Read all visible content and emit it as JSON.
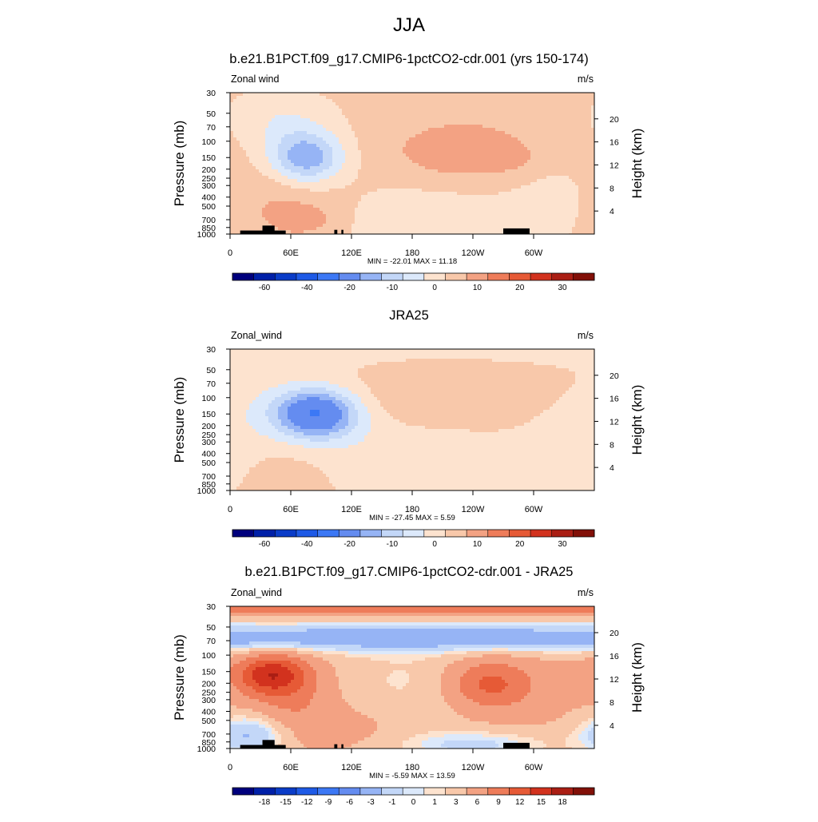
{
  "figure": {
    "title": "JJA"
  },
  "chart_data": [
    {
      "type": "heatmap",
      "title": "b.e21.B1PCT.f09_g17.CMIP6-1pctCO2-cdr.001 (yrs 150-174)",
      "left_label": "Zonal wind",
      "right_label": "m/s",
      "ylabel": "Pressure (mb)",
      "ylabel_right": "Height (km)",
      "pressure_levels": [
        30,
        50,
        70,
        100,
        150,
        200,
        250,
        300,
        400,
        500,
        700,
        850,
        1000
      ],
      "pressure_tick_labels": [
        "30",
        "50",
        "70",
        "100",
        "150",
        "200",
        "250",
        "300",
        "400",
        "500",
        "700",
        "850",
        "1000"
      ],
      "height_ticks_km": [
        4,
        8,
        12,
        16,
        20
      ],
      "height_tick_labels": [
        "4",
        "8",
        "12",
        "16",
        "20"
      ],
      "x_ticks_deg": [
        0,
        60,
        120,
        180,
        240,
        300
      ],
      "x_tick_labels": [
        "0",
        "60E",
        "120E",
        "180",
        "120W",
        "60W"
      ],
      "xlim": [
        0,
        360
      ],
      "ylim_mb": [
        1000,
        30
      ],
      "stats_label": "MIN = -22.01  MAX =  11.18",
      "min": -22.01,
      "max": 11.18,
      "levels": [
        -70,
        -60,
        -50,
        -40,
        -30,
        -20,
        -15,
        -10,
        -5,
        0,
        5,
        10,
        15,
        20,
        25,
        30,
        35
      ],
      "colorbar_labels": [
        "-60",
        "-40",
        "-20",
        "-10",
        "0",
        "10",
        "20",
        "30"
      ],
      "colorbar_label_boxes": [
        1,
        3,
        5,
        7,
        9,
        11,
        13,
        15
      ],
      "colors": [
        "#00007d",
        "#0020a8",
        "#0a3cc8",
        "#1e5ae6",
        "#3c78f5",
        "#648cf0",
        "#96b4f5",
        "#c3d7f8",
        "#dce9fb",
        "#fde3cf",
        "#f8c8aa",
        "#f3a283",
        "#ee7c5a",
        "#e65a36",
        "#d2321e",
        "#aa1e14",
        "#821008"
      ],
      "background": 0.6,
      "features": [
        {
          "lon": 75,
          "p": 150,
          "amp": -21.5,
          "slon": 26,
          "slogp": 0.2
        },
        {
          "lon": 50,
          "p": 60,
          "amp": -5,
          "slon": 30,
          "slogp": 0.18
        },
        {
          "lon": 230,
          "p": 140,
          "amp": 8,
          "slon": 60,
          "slogp": 0.3
        },
        {
          "lon": 272,
          "p": 150,
          "amp": 3.5,
          "slon": 18,
          "slogp": 0.09
        },
        {
          "lon": 55,
          "p": 450,
          "amp": 5.5,
          "slon": 45,
          "slogp": 0.35
        },
        {
          "lon": 75,
          "p": 700,
          "amp": 4,
          "slon": 20,
          "slogp": 0.1
        },
        {
          "lon": 200,
          "p": 650,
          "amp": -5,
          "slon": 65,
          "slogp": 0.35
        },
        {
          "lon": 320,
          "p": 350,
          "amp": -3,
          "slon": 35,
          "slogp": 0.3
        }
      ]
    },
    {
      "type": "heatmap",
      "title": "JRA25",
      "left_label": "Zonal_wind",
      "right_label": "m/s",
      "ylabel": "Pressure (mb)",
      "ylabel_right": "Height (km)",
      "pressure_levels": [
        30,
        50,
        70,
        100,
        150,
        200,
        250,
        300,
        400,
        500,
        700,
        850,
        1000
      ],
      "pressure_tick_labels": [
        "30",
        "50",
        "70",
        "100",
        "150",
        "200",
        "250",
        "300",
        "400",
        "500",
        "700",
        "850",
        "1000"
      ],
      "height_ticks_km": [
        4,
        8,
        12,
        16,
        20
      ],
      "height_tick_labels": [
        "4",
        "8",
        "12",
        "16",
        "20"
      ],
      "x_ticks_deg": [
        0,
        60,
        120,
        180,
        240,
        300
      ],
      "x_tick_labels": [
        "0",
        "60E",
        "120E",
        "180",
        "120W",
        "60W"
      ],
      "xlim": [
        0,
        360
      ],
      "ylim_mb": [
        1000,
        30
      ],
      "stats_label": "MIN = -27.45  MAX =   5.59",
      "min": -27.45,
      "max": 5.59,
      "levels": [
        -70,
        -60,
        -50,
        -40,
        -30,
        -20,
        -15,
        -10,
        -5,
        0,
        5,
        10,
        15,
        20,
        25,
        30,
        35
      ],
      "colorbar_labels": [
        "-60",
        "-40",
        "-20",
        "-10",
        "0",
        "10",
        "20",
        "30"
      ],
      "colorbar_label_boxes": [
        1,
        3,
        5,
        7,
        9,
        11,
        13,
        15
      ],
      "colors": [
        "#00007d",
        "#0020a8",
        "#0a3cc8",
        "#1e5ae6",
        "#3c78f5",
        "#648cf0",
        "#96b4f5",
        "#c3d7f8",
        "#dce9fb",
        "#fde3cf",
        "#f8c8aa",
        "#f3a283",
        "#ee7c5a",
        "#e65a36",
        "#d2321e",
        "#aa1e14",
        "#821008"
      ],
      "background": 0.8,
      "features": [
        {
          "lon": 85,
          "p": 150,
          "amp": -27,
          "slon": 28,
          "slogp": 0.18
        },
        {
          "lon": 60,
          "p": 160,
          "amp": -6,
          "slon": 60,
          "slogp": 0.35
        },
        {
          "lon": 0,
          "p": 30,
          "amp": -3,
          "slon": 400,
          "slogp": 0.12
        },
        {
          "lon": 210,
          "p": 100,
          "amp": 4.5,
          "slon": 75,
          "slogp": 0.25
        },
        {
          "lon": 270,
          "p": 150,
          "amp": 1.5,
          "slon": 15,
          "slogp": 0.08
        },
        {
          "lon": 200,
          "p": 500,
          "amp": -5,
          "slon": 70,
          "slogp": 0.3
        },
        {
          "lon": 330,
          "p": 400,
          "amp": -4,
          "slon": 30,
          "slogp": 0.3
        },
        {
          "lon": 60,
          "p": 500,
          "amp": 3,
          "slon": 35,
          "slogp": 0.3
        }
      ]
    },
    {
      "type": "heatmap",
      "title": "b.e21.B1PCT.f09_g17.CMIP6-1pctCO2-cdr.001 - JRA25",
      "left_label": "Zonal_wind",
      "right_label": "m/s",
      "ylabel": "Pressure (mb)",
      "ylabel_right": "Height (km)",
      "pressure_levels": [
        30,
        50,
        70,
        100,
        150,
        200,
        250,
        300,
        400,
        500,
        700,
        850,
        1000
      ],
      "pressure_tick_labels": [
        "30",
        "50",
        "70",
        "100",
        "150",
        "200",
        "250",
        "300",
        "400",
        "500",
        "700",
        "850",
        "1000"
      ],
      "height_ticks_km": [
        4,
        8,
        12,
        16,
        20
      ],
      "height_tick_labels": [
        "4",
        "8",
        "12",
        "16",
        "20"
      ],
      "x_ticks_deg": [
        0,
        60,
        120,
        180,
        240,
        300
      ],
      "x_tick_labels": [
        "0",
        "60E",
        "120E",
        "180",
        "120W",
        "60W"
      ],
      "xlim": [
        0,
        360
      ],
      "ylim_mb": [
        1000,
        30
      ],
      "stats_label": "MIN =  -5.59  MAX =  13.59",
      "min": -5.59,
      "max": 13.59,
      "levels": [
        -21,
        -18,
        -15,
        -12,
        -9,
        -6,
        -3,
        -1,
        0,
        1,
        3,
        6,
        9,
        12,
        15,
        18,
        21
      ],
      "colorbar_labels": [
        "-18",
        "-15",
        "-12",
        "-9",
        "-6",
        "-3",
        "-1",
        "0",
        "1",
        "3",
        "6",
        "9",
        "12",
        "15",
        "18"
      ],
      "colorbar_label_boxes": [
        1,
        2,
        3,
        4,
        5,
        6,
        7,
        8,
        9,
        10,
        11,
        12,
        13,
        14,
        15
      ],
      "colors": [
        "#00007d",
        "#0020a8",
        "#0a3cc8",
        "#1e5ae6",
        "#3c78f5",
        "#648cf0",
        "#96b4f5",
        "#c3d7f8",
        "#dce9fb",
        "#fde3cf",
        "#f8c8aa",
        "#f3a283",
        "#ee7c5a",
        "#e65a36",
        "#d2321e",
        "#aa1e14",
        "#821008"
      ],
      "background": 2.2,
      "features": [
        {
          "lon": 180,
          "p": 30,
          "amp": 5.5,
          "slon": 600,
          "slogp": 0.07
        },
        {
          "lon": 180,
          "p": 65,
          "amp": -7.5,
          "slon": 600,
          "slogp": 0.1
        },
        {
          "lon": 40,
          "p": 160,
          "amp": 10.5,
          "slon": 25,
          "slogp": 0.15
        },
        {
          "lon": 60,
          "p": 280,
          "amp": 4,
          "slon": 30,
          "slogp": 0.3
        },
        {
          "lon": 255,
          "p": 200,
          "amp": 6.5,
          "slon": 28,
          "slogp": 0.18
        },
        {
          "lon": 290,
          "p": 250,
          "amp": 2,
          "slon": 50,
          "slogp": 0.3
        },
        {
          "lon": 180,
          "p": 200,
          "amp": -1.5,
          "slon": 50,
          "slogp": 0.3
        },
        {
          "lon": 20,
          "p": 700,
          "amp": -6,
          "slon": 25,
          "slogp": 0.15
        },
        {
          "lon": 240,
          "p": 900,
          "amp": -4,
          "slon": 50,
          "slogp": 0.1
        },
        {
          "lon": 120,
          "p": 600,
          "amp": 1.5,
          "slon": 40,
          "slogp": 0.2
        }
      ]
    }
  ]
}
